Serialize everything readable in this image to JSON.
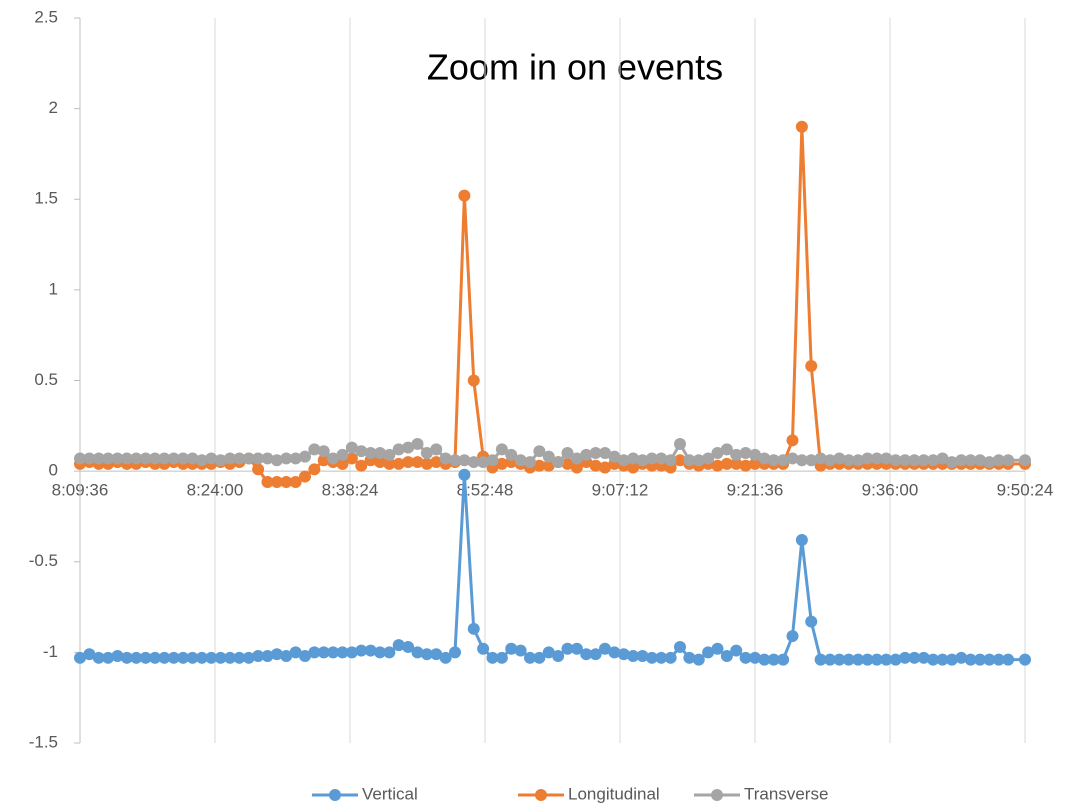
{
  "chart_data": {
    "type": "line",
    "title": "Zoom in on events",
    "x": [
      29376,
      29436,
      29496,
      29556,
      29616,
      29676,
      29736,
      29796,
      29856,
      29916,
      29976,
      30036,
      30096,
      30156,
      30216,
      30276,
      30336,
      30396,
      30456,
      30516,
      30576,
      30636,
      30696,
      30756,
      30816,
      30876,
      30936,
      30996,
      31056,
      31116,
      31176,
      31236,
      31296,
      31356,
      31416,
      31476,
      31536,
      31596,
      31656,
      31716,
      31776,
      31836,
      31896,
      31956,
      32016,
      32076,
      32136,
      32196,
      32256,
      32316,
      32376,
      32436,
      32496,
      32556,
      32616,
      32676,
      32736,
      32796,
      32856,
      32916,
      32976,
      33036,
      33096,
      33156,
      33216,
      33276,
      33336,
      33396,
      33456,
      33516,
      33576,
      33636,
      33696,
      33756,
      33816,
      33876,
      33936,
      33996,
      34056,
      34116,
      34176,
      34236,
      34296,
      34356,
      34416,
      34476,
      34536,
      34596,
      34656,
      34716,
      34776,
      34836,
      34896,
      34956,
      35016,
      35076,
      35136,
      35196,
      35256,
      35316,
      35424
    ],
    "series": [
      {
        "name": "Vertical",
        "color": "#5b9bd5",
        "values": [
          -1.03,
          -1.01,
          -1.03,
          -1.03,
          -1.02,
          -1.03,
          -1.03,
          -1.03,
          -1.03,
          -1.03,
          -1.03,
          -1.03,
          -1.03,
          -1.03,
          -1.03,
          -1.03,
          -1.03,
          -1.03,
          -1.03,
          -1.02,
          -1.02,
          -1.01,
          -1.02,
          -1.0,
          -1.02,
          -1.0,
          -1.0,
          -1.0,
          -1.0,
          -1.0,
          -0.99,
          -0.99,
          -1.0,
          -1.0,
          -0.96,
          -0.97,
          -1.0,
          -1.01,
          -1.01,
          -1.03,
          -1.0,
          -0.02,
          -0.87,
          -0.98,
          -1.03,
          -1.03,
          -0.98,
          -0.99,
          -1.03,
          -1.03,
          -1.0,
          -1.02,
          -0.98,
          -0.98,
          -1.01,
          -1.01,
          -0.98,
          -1.0,
          -1.01,
          -1.02,
          -1.02,
          -1.03,
          -1.03,
          -1.03,
          -0.97,
          -1.03,
          -1.04,
          -1.0,
          -0.98,
          -1.02,
          -0.99,
          -1.03,
          -1.03,
          -1.04,
          -1.04,
          -1.04,
          -0.91,
          -0.38,
          -0.83,
          -1.04,
          -1.04,
          -1.04,
          -1.04,
          -1.04,
          -1.04,
          -1.04,
          -1.04,
          -1.04,
          -1.03,
          -1.03,
          -1.03,
          -1.04,
          -1.04,
          -1.04,
          -1.03,
          -1.04,
          -1.04,
          -1.04,
          -1.04,
          -1.04,
          -1.04
        ]
      },
      {
        "name": "Longitudinal",
        "color": "#ed7d31",
        "values": [
          0.04,
          0.05,
          0.04,
          0.04,
          0.05,
          0.04,
          0.04,
          0.05,
          0.04,
          0.04,
          0.05,
          0.04,
          0.04,
          0.04,
          0.04,
          0.05,
          0.04,
          0.05,
          0.07,
          0.01,
          -0.06,
          -0.06,
          -0.06,
          -0.06,
          -0.03,
          0.01,
          0.06,
          0.05,
          0.04,
          0.07,
          0.03,
          0.06,
          0.05,
          0.04,
          0.04,
          0.05,
          0.05,
          0.04,
          0.05,
          0.04,
          0.05,
          1.52,
          0.5,
          0.08,
          0.02,
          0.04,
          0.05,
          0.04,
          0.02,
          0.03,
          0.03,
          0.05,
          0.04,
          0.02,
          0.05,
          0.03,
          0.02,
          0.04,
          0.03,
          0.02,
          0.04,
          0.03,
          0.03,
          0.02,
          0.06,
          0.04,
          0.03,
          0.04,
          0.03,
          0.04,
          0.04,
          0.03,
          0.04,
          0.04,
          0.04,
          0.04,
          0.17,
          1.9,
          0.58,
          0.03,
          0.04,
          0.04,
          0.04,
          0.04,
          0.04,
          0.04,
          0.04,
          0.04,
          0.04,
          0.04,
          0.04,
          0.04,
          0.04,
          0.04,
          0.04,
          0.04,
          0.04,
          0.04,
          0.04,
          0.04,
          0.04
        ]
      },
      {
        "name": "Transverse",
        "color": "#a5a5a5",
        "values": [
          0.07,
          0.07,
          0.07,
          0.07,
          0.07,
          0.07,
          0.07,
          0.07,
          0.07,
          0.07,
          0.07,
          0.07,
          0.07,
          0.06,
          0.07,
          0.06,
          0.07,
          0.07,
          0.07,
          0.07,
          0.07,
          0.06,
          0.07,
          0.07,
          0.08,
          0.12,
          0.11,
          0.07,
          0.09,
          0.13,
          0.11,
          0.1,
          0.1,
          0.09,
          0.12,
          0.13,
          0.15,
          0.1,
          0.12,
          0.07,
          0.06,
          0.06,
          0.05,
          0.05,
          0.06,
          0.12,
          0.09,
          0.06,
          0.05,
          0.11,
          0.08,
          0.05,
          0.1,
          0.07,
          0.09,
          0.1,
          0.1,
          0.08,
          0.06,
          0.07,
          0.06,
          0.07,
          0.07,
          0.06,
          0.15,
          0.06,
          0.06,
          0.07,
          0.1,
          0.12,
          0.09,
          0.1,
          0.09,
          0.07,
          0.06,
          0.06,
          0.07,
          0.06,
          0.06,
          0.07,
          0.06,
          0.07,
          0.06,
          0.06,
          0.07,
          0.07,
          0.07,
          0.06,
          0.06,
          0.06,
          0.06,
          0.06,
          0.07,
          0.05,
          0.06,
          0.06,
          0.06,
          0.05,
          0.06,
          0.06,
          0.06
        ]
      }
    ],
    "xlim": [
      29376,
      35424
    ],
    "xticks": [
      {
        "value": 29376,
        "label": "8:09:36"
      },
      {
        "value": 30240,
        "label": "8:24:00"
      },
      {
        "value": 31104,
        "label": "8:38:24"
      },
      {
        "value": 31968,
        "label": "8:52:48"
      },
      {
        "value": 32832,
        "label": "9:07:12"
      },
      {
        "value": 33696,
        "label": "9:21:36"
      },
      {
        "value": 34560,
        "label": "9:36:00"
      },
      {
        "value": 35424,
        "label": "9:50:24"
      }
    ],
    "ylim": [
      -1.5,
      2.5
    ],
    "yticks": [
      -1.5,
      -1,
      -0.5,
      0,
      0.5,
      1,
      1.5,
      2,
      2.5
    ],
    "grid": "x",
    "legend": "bottom"
  }
}
